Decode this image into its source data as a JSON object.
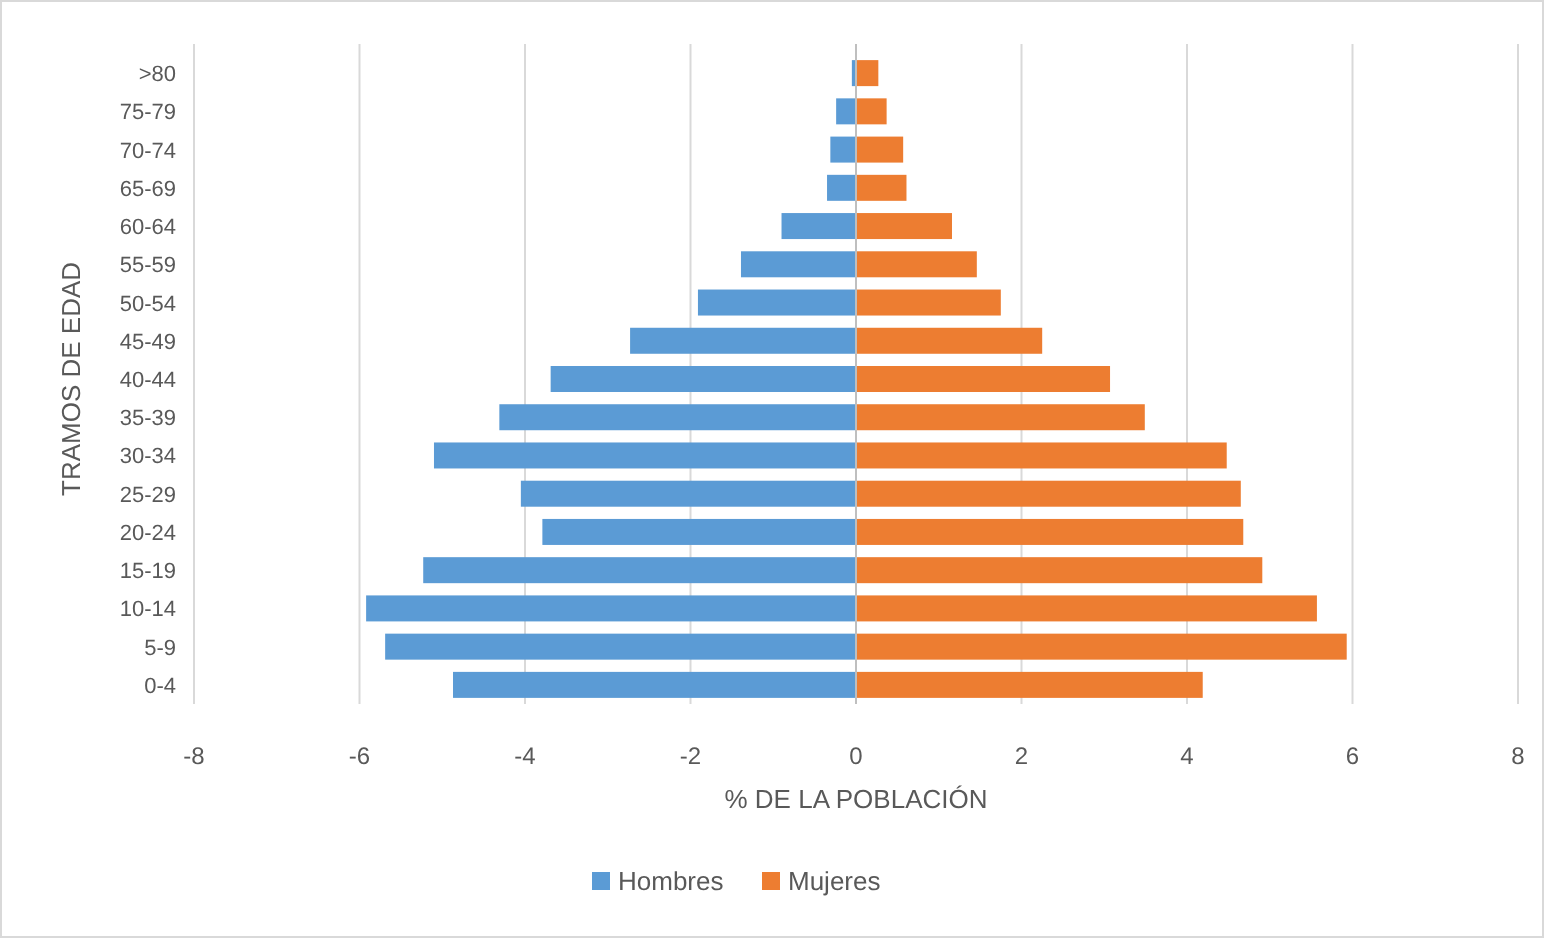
{
  "chart_data": {
    "type": "bar",
    "orientation": "horizontal",
    "stacked": true,
    "xlabel": "% DE LA POBLACIÓN",
    "ylabel": "TRAMOS DE EDAD",
    "categories": [
      ">80",
      "75-79",
      "70-74",
      "65-69",
      "60-64",
      "55-59",
      "50-54",
      "45-49",
      "40-44",
      "35-39",
      "30-34",
      "25-29",
      "20-24",
      "15-19",
      "10-14",
      "5-9",
      "0-4"
    ],
    "series": [
      {
        "name": "Hombres",
        "color": "#5b9bd5",
        "values": [
          -0.05,
          -0.24,
          -0.31,
          -0.35,
          -0.9,
          -1.39,
          -1.91,
          -2.73,
          -3.69,
          -4.31,
          -5.1,
          -4.05,
          -3.79,
          -5.23,
          -5.92,
          -5.69,
          -4.87
        ]
      },
      {
        "name": "Mujeres",
        "color": "#ed7d31",
        "values": [
          0.27,
          0.37,
          0.57,
          0.61,
          1.16,
          1.46,
          1.75,
          2.25,
          3.07,
          3.49,
          4.48,
          4.65,
          4.68,
          4.91,
          5.57,
          5.93,
          4.19
        ]
      }
    ],
    "xlim": [
      -8,
      8
    ],
    "xticks": [
      -8,
      -6,
      -4,
      -2,
      0,
      2,
      4,
      6,
      8
    ],
    "grid": "x",
    "legend": "bottom"
  }
}
